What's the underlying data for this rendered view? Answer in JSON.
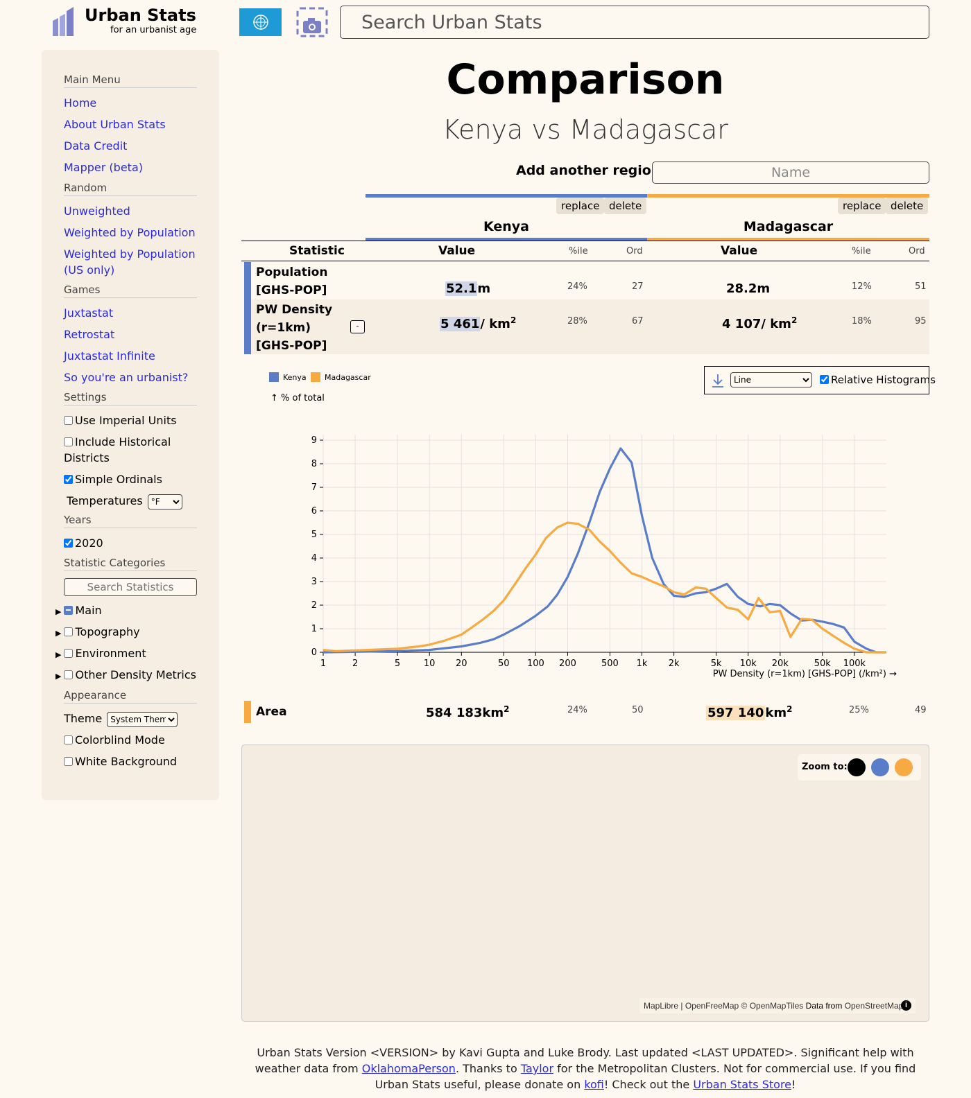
{
  "header": {
    "logo_title": "Urban Stats",
    "logo_subtitle": "for an urbanist age",
    "search_placeholder": "Search Urban Stats"
  },
  "sidebar": {
    "main_menu": "Main Menu",
    "main_links": [
      "Home",
      "About Urban Stats",
      "Data Credit",
      "Mapper (beta)"
    ],
    "random": "Random",
    "random_links": [
      "Unweighted",
      "Weighted by Population",
      "Weighted by Population (US only)"
    ],
    "games": "Games",
    "games_links": [
      "Juxtastat",
      "Retrostat",
      "Juxtastat Infinite",
      "So you're an urbanist?"
    ],
    "settings": "Settings",
    "use_imperial": "Use Imperial Units",
    "include_historical": "Include Historical Districts",
    "simple_ordinals": "Simple Ordinals",
    "temperatures": "Temperatures",
    "temperature_unit": "°F",
    "years": "Years",
    "year_2020": "2020",
    "stat_categories": "Statistic Categories",
    "search_stats_placeholder": "Search Statistics",
    "categories": [
      "Main",
      "Topography",
      "Environment",
      "Other Density Metrics"
    ],
    "appearance": "Appearance",
    "theme": "Theme",
    "theme_value": "System Theme",
    "colorblind": "Colorblind Mode",
    "white_bg": "White Background"
  },
  "main": {
    "title": "Comparison",
    "subtitle": "Kenya vs Madagascar",
    "add_region": "Add another region:",
    "add_placeholder": "Name",
    "replace": "replace",
    "delete": "delete",
    "regions": [
      {
        "name": "Kenya",
        "color": "#5a7dc9"
      },
      {
        "name": "Madagascar",
        "color": "#f7aa41"
      }
    ],
    "headers": {
      "statistic": "Statistic",
      "value": "Value",
      "pctile": "%ile",
      "ord": "Ord"
    },
    "rows": [
      {
        "label": "Population [GHS-POP]",
        "values": [
          {
            "num": "52.1",
            "unit": "m",
            "pct": "24%",
            "ord": "27"
          },
          {
            "num": "28.2",
            "unit": "m",
            "pct": "12%",
            "ord": "51"
          }
        ]
      },
      {
        "label": "PW Density (r=1km) [GHS-POP]",
        "toggle": "-",
        "values": [
          {
            "num": "5 461",
            "unit": "/ km",
            "sup": "2",
            "pct": "28%",
            "ord": "67"
          },
          {
            "num": "4 107",
            "unit": "/ km",
            "sup": "2",
            "pct": "18%",
            "ord": "95"
          }
        ]
      },
      {
        "label": "Area",
        "values": [
          {
            "num": "584 183",
            "unit": "km",
            "sup": "2",
            "pct": "24%",
            "ord": "50"
          },
          {
            "num": "597 140",
            "unit": "km",
            "sup": "2",
            "pct": "25%",
            "ord": "49"
          }
        ]
      }
    ],
    "chart_controls": {
      "style_value": "Line",
      "relative_label": "Relative Histograms"
    },
    "map": {
      "zoom_label": "Zoom to:",
      "attribution": [
        "MapLibre",
        " | ",
        "OpenFreeMap",
        " © ",
        "OpenMapTiles",
        " Data from ",
        "OpenStreetMap"
      ]
    }
  },
  "chart_data": {
    "type": "line",
    "ylabel": "↑ % of total",
    "xlabel": "PW Density (r=1km) [GHS-POP] (/km²) →",
    "x_scale": "log",
    "xlim": [
      1,
      200000
    ],
    "ylim": [
      0,
      9
    ],
    "x_ticks": [
      1,
      2,
      5,
      10,
      20,
      50,
      100,
      200,
      500,
      1000,
      2000,
      5000,
      10000,
      20000,
      50000,
      100000
    ],
    "x_tick_labels": [
      "1",
      "2",
      "5",
      "10",
      "20",
      "50",
      "100",
      "200",
      "500",
      "1k",
      "2k",
      "5k",
      "10k",
      "20k",
      "50k",
      "100k"
    ],
    "y_ticks": [
      0,
      1,
      2,
      3,
      4,
      5,
      6,
      7,
      8,
      9
    ],
    "grid": true,
    "legend_position": "top-left",
    "series": [
      {
        "name": "Kenya",
        "color": "#5a7dc9",
        "points": [
          [
            1,
            0
          ],
          [
            2,
            0.02
          ],
          [
            5,
            0.05
          ],
          [
            10,
            0.1
          ],
          [
            20,
            0.25
          ],
          [
            30,
            0.4
          ],
          [
            40,
            0.55
          ],
          [
            50,
            0.75
          ],
          [
            70,
            1.1
          ],
          [
            100,
            1.55
          ],
          [
            130,
            1.95
          ],
          [
            160,
            2.45
          ],
          [
            200,
            3.2
          ],
          [
            250,
            4.2
          ],
          [
            320,
            5.5
          ],
          [
            400,
            6.8
          ],
          [
            500,
            7.8
          ],
          [
            630,
            8.65
          ],
          [
            800,
            8.05
          ],
          [
            1000,
            5.8
          ],
          [
            1250,
            4.0
          ],
          [
            1600,
            2.9
          ],
          [
            2000,
            2.4
          ],
          [
            2500,
            2.35
          ],
          [
            3200,
            2.5
          ],
          [
            4000,
            2.55
          ],
          [
            5000,
            2.7
          ],
          [
            6300,
            2.9
          ],
          [
            8000,
            2.35
          ],
          [
            10000,
            2.05
          ],
          [
            13000,
            1.95
          ],
          [
            16000,
            2.05
          ],
          [
            20000,
            2.0
          ],
          [
            25000,
            1.65
          ],
          [
            32000,
            1.35
          ],
          [
            40000,
            1.38
          ],
          [
            50000,
            1.3
          ],
          [
            63000,
            1.2
          ],
          [
            80000,
            1.05
          ],
          [
            100000,
            0.45
          ],
          [
            130000,
            0.15
          ],
          [
            160000,
            0
          ],
          [
            200000,
            0
          ]
        ]
      },
      {
        "name": "Madagascar",
        "color": "#f7aa41",
        "points": [
          [
            1,
            0.1
          ],
          [
            1.3,
            0.05
          ],
          [
            2,
            0.08
          ],
          [
            5,
            0.15
          ],
          [
            8,
            0.25
          ],
          [
            10,
            0.32
          ],
          [
            14,
            0.5
          ],
          [
            20,
            0.75
          ],
          [
            25,
            1.05
          ],
          [
            32,
            1.4
          ],
          [
            40,
            1.75
          ],
          [
            50,
            2.2
          ],
          [
            63,
            2.85
          ],
          [
            80,
            3.55
          ],
          [
            100,
            4.15
          ],
          [
            125,
            4.85
          ],
          [
            160,
            5.3
          ],
          [
            200,
            5.5
          ],
          [
            250,
            5.45
          ],
          [
            320,
            5.2
          ],
          [
            400,
            4.7
          ],
          [
            500,
            4.3
          ],
          [
            630,
            3.8
          ],
          [
            800,
            3.35
          ],
          [
            1000,
            3.2
          ],
          [
            1250,
            3.0
          ],
          [
            1600,
            2.8
          ],
          [
            2000,
            2.55
          ],
          [
            2500,
            2.45
          ],
          [
            3200,
            2.75
          ],
          [
            4000,
            2.7
          ],
          [
            5000,
            2.3
          ],
          [
            6300,
            1.9
          ],
          [
            8000,
            1.8
          ],
          [
            10000,
            1.4
          ],
          [
            12500,
            2.3
          ],
          [
            16000,
            1.7
          ],
          [
            20000,
            1.75
          ],
          [
            25000,
            0.65
          ],
          [
            32000,
            1.42
          ],
          [
            40000,
            1.38
          ],
          [
            50000,
            1.0
          ],
          [
            63000,
            0.7
          ],
          [
            80000,
            0.4
          ],
          [
            100000,
            0.15
          ],
          [
            130000,
            0
          ],
          [
            200000,
            0
          ]
        ]
      }
    ]
  }
}
